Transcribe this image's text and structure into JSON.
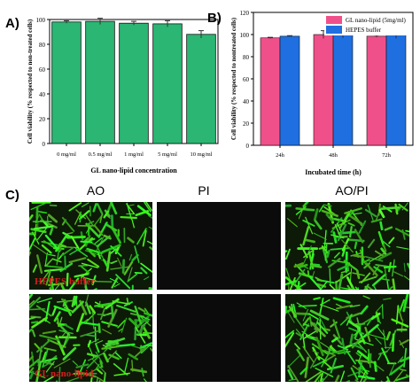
{
  "panels": {
    "a": "A)",
    "b": "B)",
    "c": "C)"
  },
  "chart_data": [
    {
      "type": "bar",
      "categories": [
        "0 mg/ml",
        "0.5 mg/ml",
        "1 mg/ml",
        "5 mg/ml",
        "10 mg/ml"
      ],
      "values": [
        98,
        98.5,
        97,
        96.5,
        88
      ],
      "errors": [
        1,
        2.5,
        1.5,
        2.5,
        3
      ],
      "xlabel": "GL nano-lipid concentration",
      "ylabel": "Cell viability (% respected to non-treated cells)",
      "ylim": [
        0,
        100
      ],
      "yticks": [
        "0",
        "20",
        "40",
        "60",
        "80",
        "100"
      ],
      "color": "#2bb673"
    },
    {
      "type": "bar",
      "categories": [
        "24h",
        "48h",
        "72h"
      ],
      "series": [
        {
          "name": "GL nano-lipid (5mg/ml)",
          "values": [
            97,
            100,
            98.5
          ],
          "errors": [
            0.5,
            3.5,
            1
          ],
          "color": "#f0508a"
        },
        {
          "name": "HEPES buffer",
          "values": [
            98.5,
            100.5,
            99.5
          ],
          "errors": [
            0.5,
            3.5,
            3
          ],
          "color": "#1f6fe0"
        }
      ],
      "xlabel": "Incubated time (h)",
      "ylabel": "Cell viability (% respected to nontreated cells)",
      "ylim": [
        0,
        120
      ],
      "yticks": [
        "0",
        "20",
        "40",
        "60",
        "80",
        "100",
        "120"
      ],
      "legend": "top-right"
    }
  ],
  "images": {
    "columns": [
      "AO",
      "PI",
      "AO/PI"
    ],
    "rows": [
      "HEPES buffer",
      "GL nano-lipid"
    ]
  }
}
